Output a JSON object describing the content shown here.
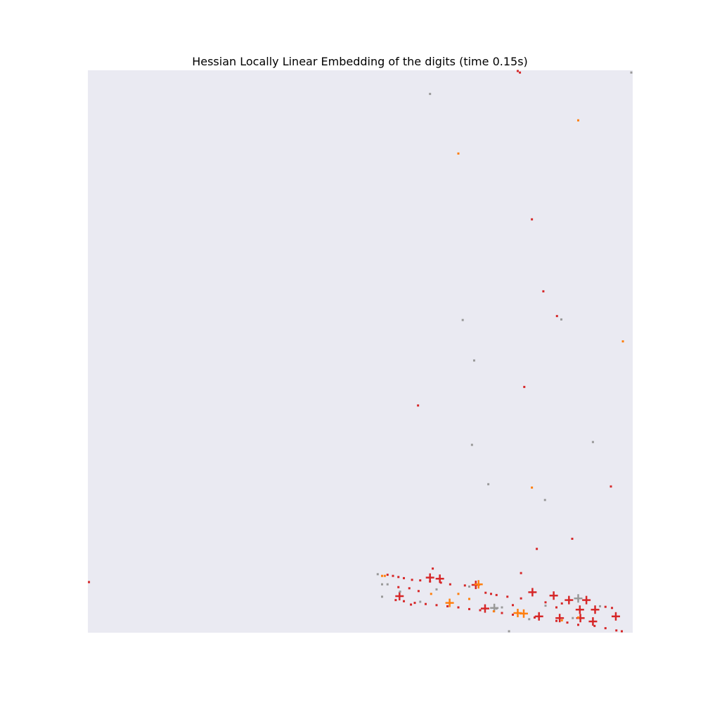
{
  "chart_data": {
    "type": "scatter",
    "title": "Hessian Locally Linear Embedding of the digits (time 0.15s)",
    "xlabel": "",
    "ylabel": "",
    "xlim": [
      0,
      1
    ],
    "ylim": [
      0,
      1
    ],
    "grid": false,
    "legend": "none",
    "axes_facecolor": "#eaeaf2",
    "series": [
      {
        "color": "#d62728",
        "marker": "dot",
        "points": [
          [
            0.789,
            1.0
          ],
          [
            0.793,
            0.996
          ],
          [
            0.815,
            0.735
          ],
          [
            0.836,
            0.607
          ],
          [
            0.861,
            0.563
          ],
          [
            0.801,
            0.437
          ],
          [
            0.606,
            0.404
          ],
          [
            0.96,
            0.26
          ],
          [
            0.889,
            0.167
          ],
          [
            0.824,
            0.149
          ],
          [
            0.002,
            0.09
          ],
          [
            0.795,
            0.106
          ],
          [
            0.633,
            0.114
          ],
          [
            0.593,
            0.05
          ]
        ]
      },
      {
        "color": "#ff7f0e",
        "marker": "dot",
        "points": [
          [
            0.9,
            0.911
          ],
          [
            0.68,
            0.852
          ],
          [
            0.982,
            0.518
          ],
          [
            0.815,
            0.258
          ]
        ]
      },
      {
        "color": "#999999",
        "marker": "dot",
        "points": [
          [
            1.0,
            0.996
          ],
          [
            0.628,
            0.958
          ],
          [
            0.869,
            0.557
          ],
          [
            0.688,
            0.556
          ],
          [
            0.709,
            0.484
          ],
          [
            0.705,
            0.334
          ],
          [
            0.927,
            0.339
          ],
          [
            0.735,
            0.264
          ],
          [
            0.839,
            0.236
          ],
          [
            0.773,
            0.002
          ]
        ]
      },
      {
        "color": "#d62728",
        "marker": "plus",
        "points": [
          [
            0.628,
            0.098
          ],
          [
            0.646,
            0.096
          ],
          [
            0.572,
            0.065
          ],
          [
            0.712,
            0.085
          ],
          [
            0.729,
            0.043
          ],
          [
            0.816,
            0.072
          ],
          [
            0.855,
            0.066
          ],
          [
            0.883,
            0.058
          ],
          [
            0.915,
            0.058
          ],
          [
            0.903,
            0.041
          ],
          [
            0.931,
            0.041
          ],
          [
            0.828,
            0.029
          ],
          [
            0.866,
            0.026
          ],
          [
            0.904,
            0.026
          ],
          [
            0.927,
            0.02
          ],
          [
            0.969,
            0.029
          ]
        ]
      },
      {
        "color": "#ff7f0e",
        "marker": "plus",
        "points": [
          [
            0.717,
            0.086
          ],
          [
            0.664,
            0.053
          ],
          [
            0.789,
            0.035
          ],
          [
            0.8,
            0.034
          ]
        ]
      },
      {
        "color": "#999999",
        "marker": "plus",
        "points": [
          [
            0.746,
            0.044
          ],
          [
            0.9,
            0.061
          ]
        ]
      },
      {
        "color": "#d62728",
        "marker": "dot",
        "points": [
          [
            0.55,
            0.103
          ],
          [
            0.56,
            0.101
          ],
          [
            0.57,
            0.099
          ],
          [
            0.58,
            0.097
          ],
          [
            0.595,
            0.094
          ],
          [
            0.61,
            0.093
          ],
          [
            0.628,
            0.091
          ],
          [
            0.648,
            0.089
          ],
          [
            0.665,
            0.086
          ],
          [
            0.692,
            0.084
          ],
          [
            0.73,
            0.071
          ],
          [
            0.74,
            0.069
          ],
          [
            0.75,
            0.067
          ],
          [
            0.77,
            0.064
          ],
          [
            0.795,
            0.061
          ],
          [
            0.84,
            0.054
          ],
          [
            0.87,
            0.052
          ],
          [
            0.95,
            0.046
          ],
          [
            0.962,
            0.044
          ],
          [
            0.565,
            0.058
          ],
          [
            0.58,
            0.056
          ],
          [
            0.6,
            0.053
          ],
          [
            0.62,
            0.051
          ],
          [
            0.64,
            0.049
          ],
          [
            0.66,
            0.047
          ],
          [
            0.68,
            0.045
          ],
          [
            0.7,
            0.042
          ],
          [
            0.72,
            0.04
          ],
          [
            0.76,
            0.035
          ],
          [
            0.78,
            0.032
          ],
          [
            0.82,
            0.027
          ],
          [
            0.86,
            0.021
          ],
          [
            0.88,
            0.018
          ],
          [
            0.9,
            0.014
          ],
          [
            0.93,
            0.012
          ],
          [
            0.95,
            0.008
          ],
          [
            0.97,
            0.004
          ],
          [
            0.98,
            0.002
          ],
          [
            0.59,
            0.079
          ],
          [
            0.607,
            0.074
          ],
          [
            0.57,
            0.081
          ],
          [
            0.78,
            0.049
          ],
          [
            0.86,
            0.045
          ]
        ]
      },
      {
        "color": "#ff7f0e",
        "marker": "dot",
        "points": [
          [
            0.54,
            0.101
          ],
          [
            0.545,
            0.101
          ],
          [
            0.63,
            0.069
          ],
          [
            0.68,
            0.069
          ],
          [
            0.7,
            0.06
          ],
          [
            0.745,
            0.038
          ],
          [
            0.87,
            0.022
          ],
          [
            0.9,
            0.027
          ]
        ]
      },
      {
        "color": "#999999",
        "marker": "dot",
        "points": [
          [
            0.532,
            0.104
          ],
          [
            0.54,
            0.086
          ],
          [
            0.55,
            0.086
          ],
          [
            0.54,
            0.064
          ],
          [
            0.573,
            0.073
          ],
          [
            0.61,
            0.055
          ],
          [
            0.64,
            0.077
          ],
          [
            0.7,
            0.082
          ],
          [
            0.75,
            0.043
          ],
          [
            0.76,
            0.045
          ],
          [
            0.81,
            0.024
          ],
          [
            0.84,
            0.048
          ],
          [
            0.89,
            0.026
          ],
          [
            0.94,
            0.047
          ]
        ]
      }
    ]
  }
}
